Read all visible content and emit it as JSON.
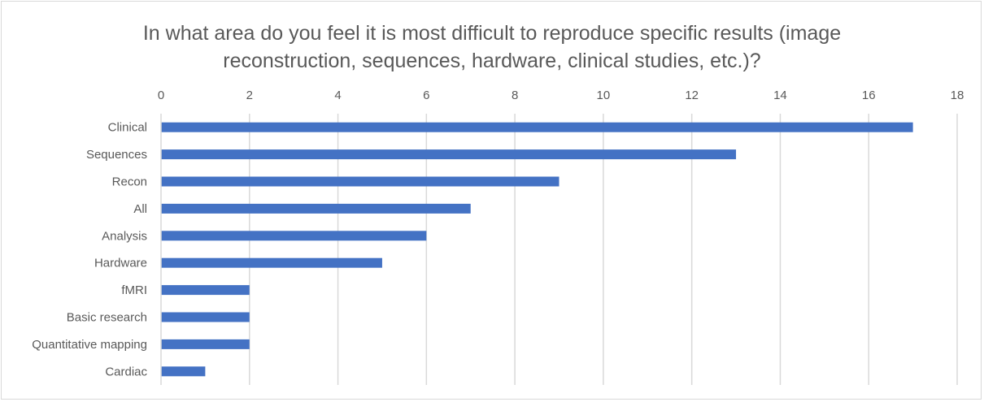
{
  "chart_data": {
    "type": "bar",
    "orientation": "horizontal",
    "title_lines": [
      "In what area do you feel it is most difficult to reproduce specific results (image",
      "reconstruction, sequences, hardware, clinical studies, etc.)?"
    ],
    "categories": [
      "Clinical",
      "Sequences",
      "Recon",
      "All",
      "Analysis",
      "Hardware",
      "fMRI",
      "Basic research",
      "Quantitative mapping",
      "Cardiac"
    ],
    "values": [
      17,
      13,
      9,
      7,
      6,
      5,
      2,
      2,
      2,
      1
    ],
    "xlim": [
      0,
      18
    ],
    "x_ticks": [
      0,
      2,
      4,
      6,
      8,
      10,
      12,
      14,
      16,
      18
    ],
    "x_axis_position": "top",
    "gridlines": true,
    "bar_color": "#4472c4",
    "grid_color": "#d9d9d9"
  }
}
